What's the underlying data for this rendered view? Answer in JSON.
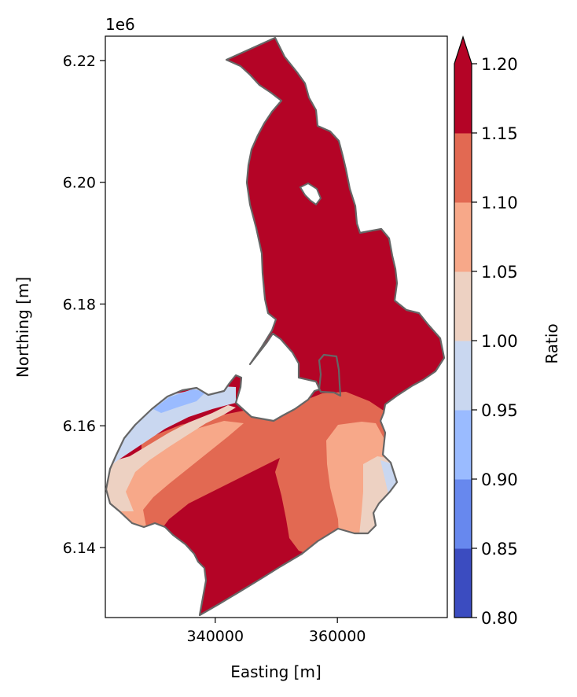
{
  "chart_data": {
    "type": "heatmap",
    "title": "",
    "xlabel": "Easting [m]",
    "ylabel": "Northing [m]",
    "y_offset_label": "1e6",
    "xlim": [
      322000,
      378000
    ],
    "ylim": [
      6128500,
      6224000
    ],
    "x_ticks": [
      {
        "value": 340000,
        "label": "340000"
      },
      {
        "value": 360000,
        "label": "360000"
      }
    ],
    "y_ticks": [
      {
        "value": 6140000,
        "label": "6.14"
      },
      {
        "value": 6160000,
        "label": "6.16"
      },
      {
        "value": 6180000,
        "label": "6.18"
      },
      {
        "value": 6200000,
        "label": "6.20"
      },
      {
        "value": 6220000,
        "label": "6.22"
      }
    ],
    "grid": false,
    "colorbar": {
      "label": "Ratio",
      "levels": [
        0.8,
        0.85,
        0.9,
        0.95,
        1.0,
        1.05,
        1.1,
        1.15,
        1.2
      ],
      "tick_labels": [
        "0.80",
        "0.85",
        "0.90",
        "0.95",
        "1.00",
        "1.05",
        "1.10",
        "1.15",
        "1.20"
      ],
      "colors": [
        "#3b4cc0",
        "#6788ee",
        "#9abbff",
        "#c9d7f0",
        "#edd1c2",
        "#f7a889",
        "#e26952",
        "#b40426"
      ],
      "extend": "max",
      "extend_color": "#b40426",
      "colormap": "coolwarm"
    },
    "outline_color": "#666666",
    "regions": [
      {
        "ratio_band": "1.15-1.20",
        "color": "#b40426",
        "area": "northern basin and south-central lobe"
      },
      {
        "ratio_band": "1.10-1.15",
        "color": "#e26952",
        "area": "central band"
      },
      {
        "ratio_band": "1.05-1.10",
        "color": "#f7a889",
        "area": "east-central and western bands"
      },
      {
        "ratio_band": "1.00-1.05",
        "color": "#edd1c2",
        "area": "far west and far east margins"
      },
      {
        "ratio_band": "0.95-1.00",
        "color": "#c9d7f0",
        "area": "northwest lobe and east tip"
      },
      {
        "ratio_band": "0.90-0.95",
        "color": "#9abbff",
        "area": "small northwest patch"
      }
    ]
  }
}
